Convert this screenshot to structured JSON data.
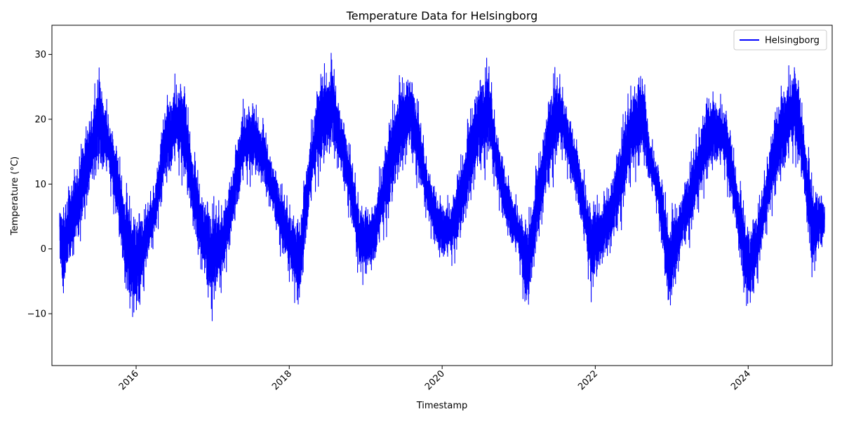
{
  "chart_data": {
    "type": "line",
    "title": "Temperature Data for Helsingborg",
    "xlabel": "Timestamp",
    "ylabel": "Temperature (°C)",
    "x_axis": {
      "kind": "date",
      "range": [
        "2014-11-25",
        "2025-02-05"
      ],
      "ticks": [
        {
          "date": "2016-01-01",
          "label": "2016"
        },
        {
          "date": "2018-01-01",
          "label": "2018"
        },
        {
          "date": "2020-01-01",
          "label": "2020"
        },
        {
          "date": "2022-01-01",
          "label": "2022"
        },
        {
          "date": "2024-01-01",
          "label": "2024"
        }
      ],
      "tick_rotation_deg": 45
    },
    "y_axis": {
      "range": [
        -18,
        34.5
      ],
      "ticks": [
        {
          "value": -10,
          "label": "−10"
        },
        {
          "value": 0,
          "label": "0"
        },
        {
          "value": 10,
          "label": "10"
        },
        {
          "value": 20,
          "label": "20"
        },
        {
          "value": 30,
          "label": "30"
        }
      ]
    },
    "grid": false,
    "legend": {
      "placement": "top-right"
    },
    "series": [
      {
        "name": "Helsingborg",
        "color": "#0000ff",
        "envelope": {
          "note": "",
          "points": [
            {
              "date": "2015-01-01",
              "min": -3,
              "max": 9.5
            },
            {
              "date": "2015-01-15",
              "min": -9.5,
              "max": 9
            },
            {
              "date": "2015-02-15",
              "min": -5,
              "max": 12
            },
            {
              "date": "2015-04-01",
              "min": -2,
              "max": 16
            },
            {
              "date": "2015-05-15",
              "min": 5,
              "max": 22
            },
            {
              "date": "2015-07-10",
              "min": 9,
              "max": 31
            },
            {
              "date": "2015-08-15",
              "min": 9,
              "max": 24
            },
            {
              "date": "2015-10-01",
              "min": 3,
              "max": 17
            },
            {
              "date": "2015-11-15",
              "min": -10,
              "max": 12
            },
            {
              "date": "2016-01-05",
              "min": -15.5,
              "max": 9
            },
            {
              "date": "2016-02-15",
              "min": -5,
              "max": 8
            },
            {
              "date": "2016-04-01",
              "min": 0,
              "max": 13
            },
            {
              "date": "2016-05-15",
              "min": 7,
              "max": 25
            },
            {
              "date": "2016-07-01",
              "min": 10,
              "max": 28.5
            },
            {
              "date": "2016-08-15",
              "min": 9,
              "max": 28
            },
            {
              "date": "2016-10-01",
              "min": 1,
              "max": 17
            },
            {
              "date": "2016-11-15",
              "min": -7,
              "max": 11
            },
            {
              "date": "2016-12-20",
              "min": -12.5,
              "max": 10
            },
            {
              "date": "2017-02-15",
              "min": -8,
              "max": 10
            },
            {
              "date": "2017-04-01",
              "min": 0,
              "max": 14
            },
            {
              "date": "2017-05-20",
              "min": 7,
              "max": 24.5
            },
            {
              "date": "2017-07-15",
              "min": 10,
              "max": 24
            },
            {
              "date": "2017-09-01",
              "min": 8,
              "max": 21
            },
            {
              "date": "2017-10-15",
              "min": 3,
              "max": 15
            },
            {
              "date": "2017-12-01",
              "min": -3,
              "max": 11
            },
            {
              "date": "2018-02-20",
              "min": -12,
              "max": 8
            },
            {
              "date": "2018-04-01",
              "min": 2,
              "max": 18
            },
            {
              "date": "2018-05-20",
              "min": 9,
              "max": 28.5
            },
            {
              "date": "2018-07-25",
              "min": 13,
              "max": 32
            },
            {
              "date": "2018-09-01",
              "min": 9,
              "max": 24
            },
            {
              "date": "2018-10-15",
              "min": 4,
              "max": 18
            },
            {
              "date": "2018-12-01",
              "min": -7,
              "max": 11
            },
            {
              "date": "2019-02-01",
              "min": -5,
              "max": 8
            },
            {
              "date": "2019-04-01",
              "min": 0,
              "max": 18
            },
            {
              "date": "2019-06-01",
              "min": 8,
              "max": 28
            },
            {
              "date": "2019-07-25",
              "min": 12,
              "max": 30
            },
            {
              "date": "2019-09-01",
              "min": 9,
              "max": 26
            },
            {
              "date": "2019-10-20",
              "min": 3,
              "max": 16
            },
            {
              "date": "2019-12-15",
              "min": -3,
              "max": 10
            },
            {
              "date": "2020-02-15",
              "min": -4,
              "max": 9
            },
            {
              "date": "2020-04-01",
              "min": 0,
              "max": 16
            },
            {
              "date": "2020-06-01",
              "min": 7,
              "max": 27
            },
            {
              "date": "2020-08-10",
              "min": 11,
              "max": 32
            },
            {
              "date": "2020-09-15",
              "min": 7,
              "max": 22
            },
            {
              "date": "2020-11-01",
              "min": 1,
              "max": 14
            },
            {
              "date": "2021-01-01",
              "min": -4,
              "max": 8
            },
            {
              "date": "2021-02-10",
              "min": -12.5,
              "max": 6
            },
            {
              "date": "2021-04-01",
              "min": -1,
              "max": 16
            },
            {
              "date": "2021-06-15",
              "min": 9,
              "max": 30
            },
            {
              "date": "2021-07-20",
              "min": 13,
              "max": 29
            },
            {
              "date": "2021-09-01",
              "min": 9,
              "max": 23
            },
            {
              "date": "2021-10-15",
              "min": 4,
              "max": 17
            },
            {
              "date": "2021-12-10",
              "min": -9,
              "max": 9
            },
            {
              "date": "2022-02-15",
              "min": -3,
              "max": 10
            },
            {
              "date": "2022-04-01",
              "min": -2,
              "max": 15
            },
            {
              "date": "2022-06-20",
              "min": 8,
              "max": 29
            },
            {
              "date": "2022-08-15",
              "min": 11,
              "max": 31
            },
            {
              "date": "2022-09-20",
              "min": 8,
              "max": 19
            },
            {
              "date": "2022-11-01",
              "min": 3,
              "max": 14
            },
            {
              "date": "2022-12-18",
              "min": -12.5,
              "max": 8
            },
            {
              "date": "2023-02-15",
              "min": -3,
              "max": 10
            },
            {
              "date": "2023-04-01",
              "min": 0,
              "max": 16
            },
            {
              "date": "2023-06-15",
              "min": 8,
              "max": 27
            },
            {
              "date": "2023-08-01",
              "min": 11,
              "max": 26
            },
            {
              "date": "2023-09-15",
              "min": 9,
              "max": 24
            },
            {
              "date": "2023-11-01",
              "min": 2,
              "max": 15
            },
            {
              "date": "2023-12-15",
              "min": -10,
              "max": 9
            },
            {
              "date": "2024-01-10",
              "min": -13,
              "max": 6
            },
            {
              "date": "2024-03-01",
              "min": -3,
              "max": 10
            },
            {
              "date": "2024-05-01",
              "min": 5,
              "max": 24
            },
            {
              "date": "2024-06-20",
              "min": 9,
              "max": 29
            },
            {
              "date": "2024-08-15",
              "min": 12,
              "max": 31
            },
            {
              "date": "2024-09-20",
              "min": 8,
              "max": 22
            },
            {
              "date": "2024-11-01",
              "min": -7,
              "max": 14
            },
            {
              "date": "2024-12-31",
              "min": 0,
              "max": 8.5
            }
          ]
        }
      }
    ]
  }
}
